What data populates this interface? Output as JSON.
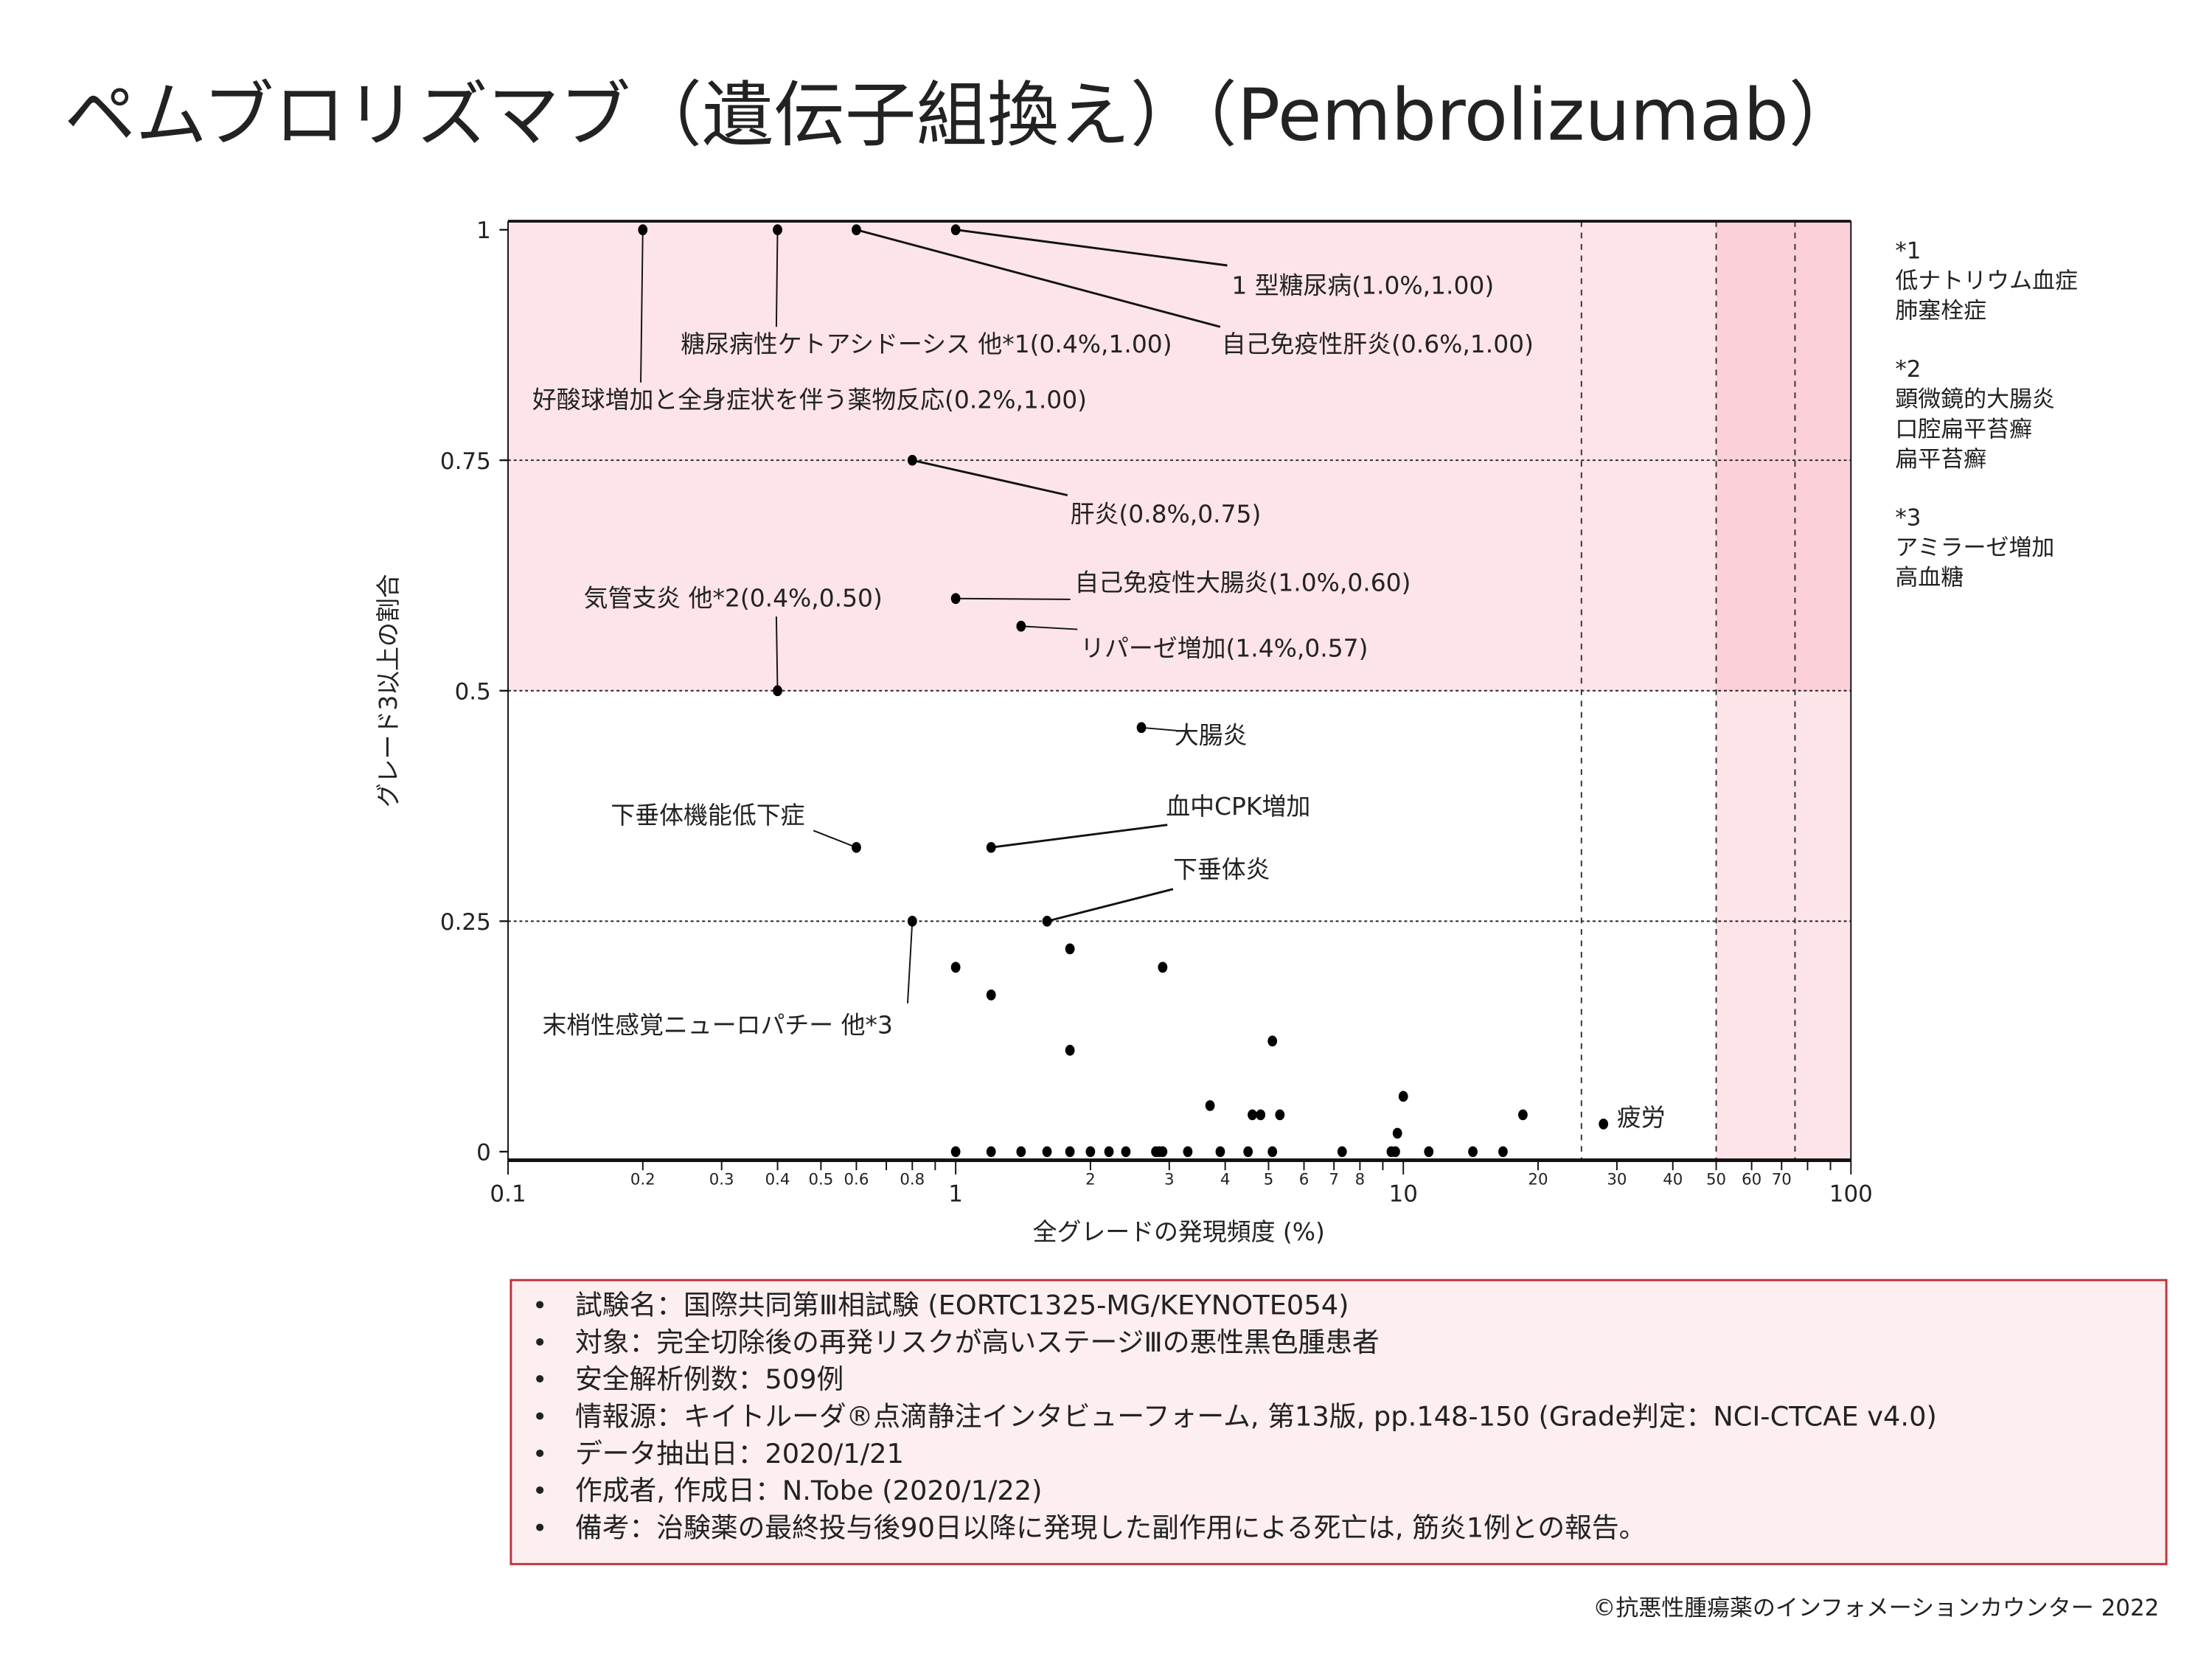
{
  "title": "ペムブロリズマブ（遺伝子組換え）（Pembrolizumab）",
  "chart_data": {
    "type": "scatter",
    "xlabel": "全グレードの発現頻度 (%)",
    "ylabel": "グレード3以上の割合",
    "x_scale": "log",
    "xlim": [
      0.1,
      100
    ],
    "ylim": [
      0,
      1
    ],
    "x_ticks_major": [
      "0.1",
      "1",
      "10",
      "100"
    ],
    "x_ticks_minor": [
      "0.2",
      "0.3",
      "0.4",
      "0.5",
      "0.6",
      "0.8",
      "2",
      "3",
      "4",
      "5",
      "6",
      "7",
      "8",
      "20",
      "30",
      "40",
      "50",
      "60",
      "70"
    ],
    "y_ticks": [
      "0",
      "0.25",
      "0.5",
      "0.75",
      "1"
    ],
    "gridlines_y": [
      0.25,
      0.5,
      0.75
    ],
    "dashed_x_lines": [
      25,
      50,
      75
    ],
    "highlight_regions": [
      {
        "desc": "y >= 0.5",
        "color": "#fde4e8"
      },
      {
        "desc": "x >= 50",
        "color": "#fde4e8"
      },
      {
        "desc": "x >= 50 and y >= 0.5",
        "color": "#fcd0d8"
      }
    ],
    "points": [
      {
        "x": 0.2,
        "y": 1.0
      },
      {
        "x": 0.4,
        "y": 1.0
      },
      {
        "x": 0.6,
        "y": 1.0
      },
      {
        "x": 1.0,
        "y": 1.0
      },
      {
        "x": 0.8,
        "y": 0.75
      },
      {
        "x": 1.0,
        "y": 0.6
      },
      {
        "x": 1.4,
        "y": 0.57
      },
      {
        "x": 0.4,
        "y": 0.5
      },
      {
        "x": 2.6,
        "y": 0.46
      },
      {
        "x": 0.6,
        "y": 0.33
      },
      {
        "x": 1.2,
        "y": 0.33
      },
      {
        "x": 1.6,
        "y": 0.25
      },
      {
        "x": 0.8,
        "y": 0.25
      },
      {
        "x": 28,
        "y": 0.03
      },
      {
        "x": 1.0,
        "y": 0.2
      },
      {
        "x": 1.2,
        "y": 0.17
      },
      {
        "x": 1.8,
        "y": 0.22
      },
      {
        "x": 2.9,
        "y": 0.2
      },
      {
        "x": 1.8,
        "y": 0.11
      },
      {
        "x": 5.1,
        "y": 0.12
      },
      {
        "x": 3.7,
        "y": 0.05
      },
      {
        "x": 4.6,
        "y": 0.04
      },
      {
        "x": 4.8,
        "y": 0.04
      },
      {
        "x": 5.3,
        "y": 0.04
      },
      {
        "x": 10.0,
        "y": 0.06
      },
      {
        "x": 9.7,
        "y": 0.02
      },
      {
        "x": 18.5,
        "y": 0.04
      },
      {
        "x": 1.0,
        "y": 0
      },
      {
        "x": 1.2,
        "y": 0
      },
      {
        "x": 1.4,
        "y": 0
      },
      {
        "x": 1.6,
        "y": 0
      },
      {
        "x": 1.8,
        "y": 0
      },
      {
        "x": 2.0,
        "y": 0
      },
      {
        "x": 2.2,
        "y": 0
      },
      {
        "x": 2.4,
        "y": 0
      },
      {
        "x": 2.8,
        "y": 0
      },
      {
        "x": 2.85,
        "y": 0
      },
      {
        "x": 2.9,
        "y": 0
      },
      {
        "x": 3.3,
        "y": 0
      },
      {
        "x": 3.9,
        "y": 0
      },
      {
        "x": 4.5,
        "y": 0
      },
      {
        "x": 5.1,
        "y": 0
      },
      {
        "x": 7.3,
        "y": 0
      },
      {
        "x": 9.4,
        "y": 0
      },
      {
        "x": 9.6,
        "y": 0
      },
      {
        "x": 11.4,
        "y": 0
      },
      {
        "x": 14.3,
        "y": 0
      },
      {
        "x": 16.7,
        "y": 0
      }
    ],
    "annotations": [
      {
        "text": "1 型糖尿病(1.0%,1.00)",
        "point": 3
      },
      {
        "text": "自己免疫性肝炎(0.6%,1.00)",
        "point": 2
      },
      {
        "text": "糖尿病性ケトアシドーシス 他*1(0.4%,1.00)",
        "point": 1
      },
      {
        "text": "好酸球増加と全身症状を伴う薬物反応(0.2%,1.00)",
        "point": 0
      },
      {
        "text": "肝炎(0.8%,0.75)",
        "point": 4
      },
      {
        "text": "自己免疫性大腸炎(1.0%,0.60)",
        "point": 5
      },
      {
        "text": "リパーゼ増加(1.4%,0.57)",
        "point": 6
      },
      {
        "text": "気管支炎 他*2(0.4%,0.50)",
        "point": 7
      },
      {
        "text": "大腸炎",
        "point": 8
      },
      {
        "text": "下垂体機能低下症",
        "point": 9
      },
      {
        "text": "血中CPK増加",
        "point": 10
      },
      {
        "text": "下垂体炎",
        "point": 11
      },
      {
        "text": "末梢性感覚ニューロパチー 他*3",
        "point": 12
      },
      {
        "text": "疲労",
        "point": 13
      }
    ]
  },
  "footnotes": [
    {
      "mark": "*1",
      "items": [
        "低ナトリウム血症",
        "肺塞栓症"
      ]
    },
    {
      "mark": "*2",
      "items": [
        "顕微鏡的大腸炎",
        "口腔扁平苔癬",
        "扁平苔癬"
      ]
    },
    {
      "mark": "*3",
      "items": [
        "アミラーゼ増加",
        "高血糖"
      ]
    }
  ],
  "info_box": {
    "bullet": "•",
    "lines": [
      "試験名：国際共同第Ⅲ相試験 (EORTC1325-MG/KEYNOTE054)",
      "対象：完全切除後の再発リスクが高いステージⅢの悪性黒色腫患者",
      "安全解析例数：509例",
      "情報源：キイトルーダ®点滴静注インタビューフォーム, 第13版, pp.148-150 (Grade判定：NCI-CTCAE v4.0)",
      "データ抽出日：2020/1/21",
      "作成者, 作成日：N.Tobe (2020/1/22)",
      "備考：治験薬の最終投与後90日以降に発現した副作用による死亡は, 筋炎1例との報告。"
    ],
    "border_color": "#c0303a",
    "background": "#fdeef0"
  },
  "copyright": "©抗悪性腫瘍薬のインフォメーションカウンター  2022"
}
